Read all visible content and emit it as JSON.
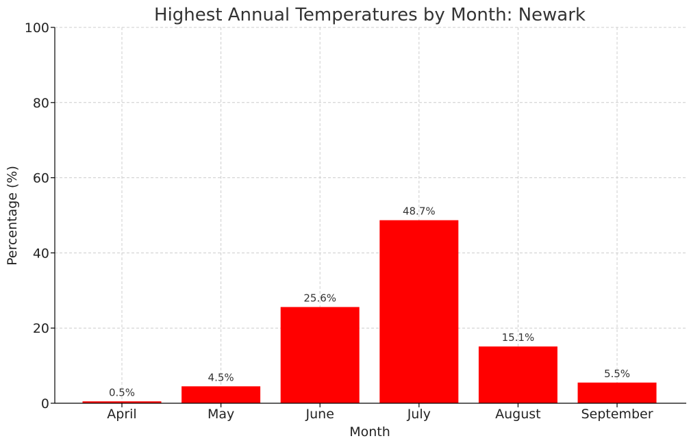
{
  "chart_data": {
    "type": "bar",
    "title": "Highest Annual Temperatures by Month: Newark",
    "xlabel": "Month",
    "ylabel": "Percentage (%)",
    "categories": [
      "April",
      "May",
      "June",
      "July",
      "August",
      "September"
    ],
    "values": [
      0.5,
      4.5,
      25.6,
      48.7,
      15.1,
      5.5
    ],
    "data_labels": [
      "0.5%",
      "4.5%",
      "25.6%",
      "48.7%",
      "15.1%",
      "5.5%"
    ],
    "ylim": [
      0,
      100
    ],
    "yticks": [
      0,
      20,
      40,
      60,
      80,
      100
    ],
    "grid": true,
    "bar_color": "#ff0000"
  }
}
